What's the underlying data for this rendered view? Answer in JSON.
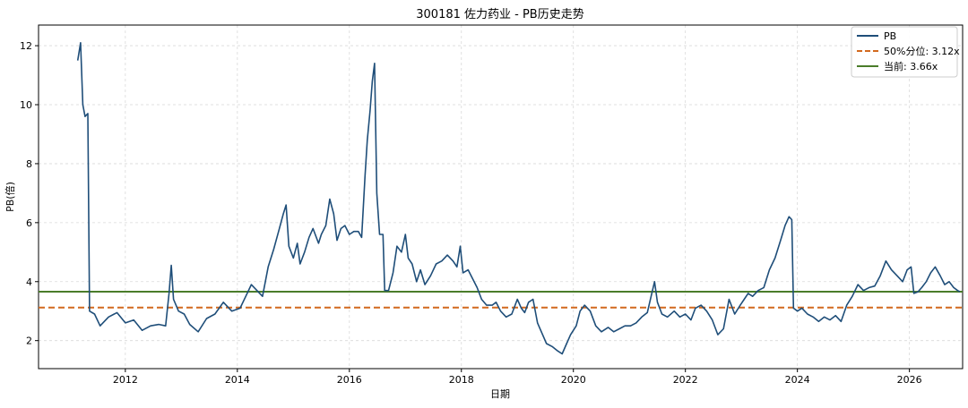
{
  "chart_data": {
    "type": "line",
    "title": "300181 佐力药业 - PB历史走势",
    "xlabel": "日期",
    "ylabel": "PB(倍)",
    "xlim": [
      2010.45,
      2026.95
    ],
    "ylim": [
      1.05,
      12.7
    ],
    "x_ticks": [
      2012,
      2014,
      2016,
      2018,
      2020,
      2022,
      2024,
      2026
    ],
    "x_tick_labels": [
      "2012",
      "2014",
      "2016",
      "2018",
      "2020",
      "2022",
      "2024",
      "2026"
    ],
    "y_ticks": [
      2,
      4,
      6,
      8,
      10,
      12
    ],
    "y_tick_labels": [
      "2",
      "4",
      "6",
      "8",
      "10",
      "12"
    ],
    "grid": true,
    "legend_position": "top-right",
    "colors": {
      "pb": "#1f4e79",
      "median": "#d2691e",
      "current": "#4a7c2a",
      "grid": "#d9d9d9"
    },
    "reference_lines": [
      {
        "name": "50%分位: 3.12x",
        "value": 3.12,
        "style": "dashed",
        "color": "#d2691e"
      },
      {
        "name": "当前: 3.66x",
        "value": 3.66,
        "style": "solid",
        "color": "#4a7c2a"
      }
    ],
    "series": [
      {
        "name": "PB",
        "color": "#1f4e79",
        "points": [
          [
            2011.15,
            11.5
          ],
          [
            2011.2,
            12.1
          ],
          [
            2011.24,
            10.0
          ],
          [
            2011.28,
            9.6
          ],
          [
            2011.33,
            9.7
          ],
          [
            2011.36,
            3.0
          ],
          [
            2011.45,
            2.9
          ],
          [
            2011.55,
            2.5
          ],
          [
            2011.7,
            2.8
          ],
          [
            2011.85,
            2.95
          ],
          [
            2012.0,
            2.6
          ],
          [
            2012.15,
            2.7
          ],
          [
            2012.3,
            2.35
          ],
          [
            2012.45,
            2.5
          ],
          [
            2012.6,
            2.55
          ],
          [
            2012.72,
            2.5
          ],
          [
            2012.78,
            3.6
          ],
          [
            2012.82,
            4.55
          ],
          [
            2012.86,
            3.4
          ],
          [
            2012.95,
            3.0
          ],
          [
            2013.05,
            2.9
          ],
          [
            2013.15,
            2.55
          ],
          [
            2013.3,
            2.3
          ],
          [
            2013.45,
            2.75
          ],
          [
            2013.6,
            2.9
          ],
          [
            2013.75,
            3.3
          ],
          [
            2013.9,
            3.0
          ],
          [
            2014.05,
            3.1
          ],
          [
            2014.15,
            3.5
          ],
          [
            2014.25,
            3.9
          ],
          [
            2014.35,
            3.7
          ],
          [
            2014.45,
            3.5
          ],
          [
            2014.55,
            4.5
          ],
          [
            2014.65,
            5.1
          ],
          [
            2014.75,
            5.8
          ],
          [
            2014.82,
            6.3
          ],
          [
            2014.87,
            6.6
          ],
          [
            2014.92,
            5.2
          ],
          [
            2015.0,
            4.8
          ],
          [
            2015.07,
            5.3
          ],
          [
            2015.12,
            4.6
          ],
          [
            2015.2,
            5.0
          ],
          [
            2015.28,
            5.5
          ],
          [
            2015.35,
            5.8
          ],
          [
            2015.45,
            5.3
          ],
          [
            2015.5,
            5.6
          ],
          [
            2015.58,
            5.9
          ],
          [
            2015.65,
            6.8
          ],
          [
            2015.72,
            6.3
          ],
          [
            2015.78,
            5.4
          ],
          [
            2015.85,
            5.8
          ],
          [
            2015.92,
            5.9
          ],
          [
            2016.0,
            5.6
          ],
          [
            2016.08,
            5.7
          ],
          [
            2016.16,
            5.7
          ],
          [
            2016.22,
            5.5
          ],
          [
            2016.28,
            7.6
          ],
          [
            2016.32,
            8.8
          ],
          [
            2016.37,
            9.8
          ],
          [
            2016.41,
            10.8
          ],
          [
            2016.45,
            11.4
          ],
          [
            2016.49,
            7.0
          ],
          [
            2016.54,
            5.6
          ],
          [
            2016.6,
            5.6
          ],
          [
            2016.63,
            3.7
          ],
          [
            2016.7,
            3.7
          ],
          [
            2016.78,
            4.3
          ],
          [
            2016.85,
            5.2
          ],
          [
            2016.93,
            5.0
          ],
          [
            2017.0,
            5.6
          ],
          [
            2017.05,
            4.8
          ],
          [
            2017.12,
            4.6
          ],
          [
            2017.2,
            4.0
          ],
          [
            2017.27,
            4.4
          ],
          [
            2017.35,
            3.9
          ],
          [
            2017.45,
            4.2
          ],
          [
            2017.55,
            4.6
          ],
          [
            2017.65,
            4.7
          ],
          [
            2017.75,
            4.9
          ],
          [
            2017.85,
            4.7
          ],
          [
            2017.92,
            4.5
          ],
          [
            2017.98,
            5.2
          ],
          [
            2018.03,
            4.3
          ],
          [
            2018.12,
            4.4
          ],
          [
            2018.2,
            4.1
          ],
          [
            2018.28,
            3.8
          ],
          [
            2018.36,
            3.4
          ],
          [
            2018.45,
            3.2
          ],
          [
            2018.55,
            3.2
          ],
          [
            2018.62,
            3.3
          ],
          [
            2018.7,
            3.0
          ],
          [
            2018.8,
            2.8
          ],
          [
            2018.9,
            2.9
          ],
          [
            2019.0,
            3.4
          ],
          [
            2019.07,
            3.1
          ],
          [
            2019.13,
            2.95
          ],
          [
            2019.2,
            3.3
          ],
          [
            2019.28,
            3.4
          ],
          [
            2019.36,
            2.6
          ],
          [
            2019.45,
            2.2
          ],
          [
            2019.52,
            1.9
          ],
          [
            2019.62,
            1.8
          ],
          [
            2019.72,
            1.65
          ],
          [
            2019.8,
            1.55
          ],
          [
            2019.88,
            1.9
          ],
          [
            2019.95,
            2.2
          ],
          [
            2020.05,
            2.5
          ],
          [
            2020.12,
            3.0
          ],
          [
            2020.2,
            3.2
          ],
          [
            2020.3,
            3.0
          ],
          [
            2020.4,
            2.5
          ],
          [
            2020.5,
            2.3
          ],
          [
            2020.62,
            2.45
          ],
          [
            2020.72,
            2.3
          ],
          [
            2020.82,
            2.4
          ],
          [
            2020.92,
            2.5
          ],
          [
            2021.02,
            2.5
          ],
          [
            2021.12,
            2.6
          ],
          [
            2021.22,
            2.8
          ],
          [
            2021.32,
            2.95
          ],
          [
            2021.4,
            3.6
          ],
          [
            2021.45,
            4.0
          ],
          [
            2021.5,
            3.3
          ],
          [
            2021.58,
            2.9
          ],
          [
            2021.68,
            2.8
          ],
          [
            2021.8,
            3.0
          ],
          [
            2021.9,
            2.8
          ],
          [
            2022.0,
            2.9
          ],
          [
            2022.1,
            2.7
          ],
          [
            2022.18,
            3.1
          ],
          [
            2022.28,
            3.2
          ],
          [
            2022.38,
            3.0
          ],
          [
            2022.48,
            2.7
          ],
          [
            2022.58,
            2.2
          ],
          [
            2022.68,
            2.4
          ],
          [
            2022.78,
            3.4
          ],
          [
            2022.88,
            2.9
          ],
          [
            2022.98,
            3.2
          ],
          [
            2023.05,
            3.4
          ],
          [
            2023.12,
            3.6
          ],
          [
            2023.2,
            3.5
          ],
          [
            2023.3,
            3.7
          ],
          [
            2023.4,
            3.8
          ],
          [
            2023.5,
            4.4
          ],
          [
            2023.6,
            4.8
          ],
          [
            2023.7,
            5.4
          ],
          [
            2023.78,
            5.9
          ],
          [
            2023.85,
            6.2
          ],
          [
            2023.9,
            6.1
          ],
          [
            2023.93,
            3.1
          ],
          [
            2024.0,
            3.0
          ],
          [
            2024.08,
            3.1
          ],
          [
            2024.18,
            2.9
          ],
          [
            2024.28,
            2.8
          ],
          [
            2024.38,
            2.65
          ],
          [
            2024.48,
            2.8
          ],
          [
            2024.58,
            2.7
          ],
          [
            2024.68,
            2.85
          ],
          [
            2024.78,
            2.65
          ],
          [
            2024.88,
            3.2
          ],
          [
            2024.98,
            3.5
          ],
          [
            2025.08,
            3.9
          ],
          [
            2025.18,
            3.7
          ],
          [
            2025.28,
            3.8
          ],
          [
            2025.38,
            3.85
          ],
          [
            2025.48,
            4.2
          ],
          [
            2025.58,
            4.7
          ],
          [
            2025.68,
            4.4
          ],
          [
            2025.78,
            4.2
          ],
          [
            2025.88,
            4.0
          ],
          [
            2025.96,
            4.4
          ],
          [
            2026.03,
            4.5
          ],
          [
            2026.08,
            3.6
          ],
          [
            2026.15,
            3.65
          ],
          [
            2026.22,
            3.8
          ],
          [
            2026.3,
            4.0
          ],
          [
            2026.38,
            4.3
          ],
          [
            2026.46,
            4.5
          ],
          [
            2026.55,
            4.2
          ],
          [
            2026.63,
            3.9
          ],
          [
            2026.71,
            4.0
          ],
          [
            2026.79,
            3.8
          ],
          [
            2026.86,
            3.7
          ],
          [
            2026.9,
            3.66
          ]
        ]
      }
    ]
  }
}
